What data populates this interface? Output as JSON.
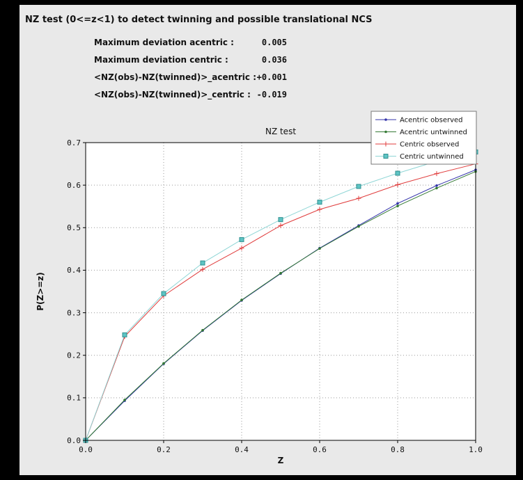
{
  "window": {
    "frame_bg": "#000000",
    "panel_bg": "#e9e9e9"
  },
  "header": {
    "title": "NZ test (0<=z<1) to detect twinning and possible translational NCS"
  },
  "stats": [
    {
      "label": "Maximum deviation acentric :",
      "value": "0.005"
    },
    {
      "label": "Maximum deviation centric :",
      "value": "0.036"
    },
    {
      "label": "<NZ(obs)-NZ(twinned)>_acentric :",
      "value": "+0.001"
    },
    {
      "label": "<NZ(obs)-NZ(twinned)>_centric :",
      "value": "-0.019"
    }
  ],
  "chart_data": {
    "type": "line",
    "title": "NZ test",
    "xlabel": "Z",
    "ylabel": "P(Z>=z)",
    "xlim": [
      0.0,
      1.0
    ],
    "ylim": [
      0.0,
      0.7
    ],
    "xticks": [
      0.0,
      0.2,
      0.4,
      0.6,
      0.8,
      1.0
    ],
    "yticks": [
      0.0,
      0.1,
      0.2,
      0.3,
      0.4,
      0.5,
      0.6,
      0.7
    ],
    "grid": true,
    "grid_color": "#9a9a9a",
    "plot_bg": "#ffffff",
    "legend_position": "top-right",
    "x": [
      0.0,
      0.1,
      0.2,
      0.3,
      0.4,
      0.5,
      0.6,
      0.7,
      0.8,
      0.9,
      1.0
    ],
    "series": [
      {
        "name": "Acentric observed",
        "color": "#3333aa",
        "marker": "dot",
        "values": [
          0.0,
          0.093,
          0.18,
          0.258,
          0.329,
          0.392,
          0.452,
          0.505,
          0.557,
          0.599,
          0.636
        ]
      },
      {
        "name": "Acentric untwinned",
        "color": "#357a35",
        "marker": "dot",
        "values": [
          0.0,
          0.095,
          0.181,
          0.259,
          0.33,
          0.393,
          0.451,
          0.503,
          0.551,
          0.593,
          0.632
        ]
      },
      {
        "name": "Centric observed",
        "color": "#e03c3c",
        "marker": "plus",
        "values": [
          0.0,
          0.244,
          0.34,
          0.402,
          0.452,
          0.505,
          0.543,
          0.569,
          0.601,
          0.627,
          0.65
        ]
      },
      {
        "name": "Centric untwinned",
        "color": "#8fd6d6",
        "marker": "square",
        "marker_fill": "#5ec4c4",
        "marker_edge": "#2f8f8f",
        "values": [
          0.0,
          0.248,
          0.345,
          0.417,
          0.472,
          0.519,
          0.56,
          0.597,
          0.628,
          0.656,
          0.678
        ]
      }
    ]
  }
}
